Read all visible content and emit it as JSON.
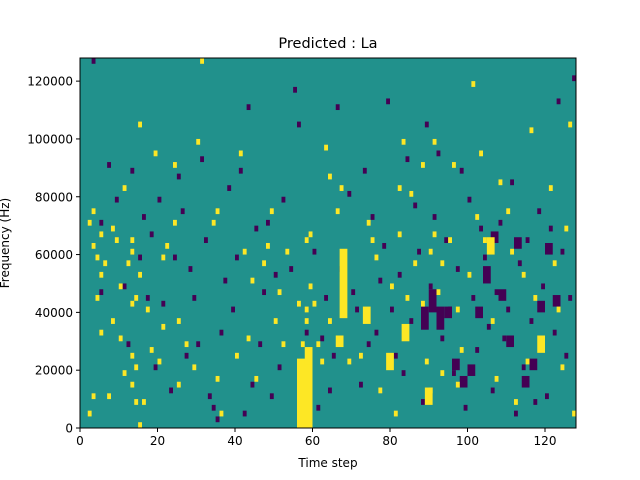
{
  "chart_data": {
    "type": "heatmap",
    "title": "Predicted : La",
    "xlabel": "Time step",
    "ylabel": "Frequency (Hz)",
    "xlim": [
      0,
      128
    ],
    "ylim": [
      0,
      128000
    ],
    "x_ticks": [
      0,
      20,
      40,
      60,
      80,
      100,
      120
    ],
    "y_ticks": [
      0,
      20000,
      40000,
      60000,
      80000,
      100000,
      120000
    ],
    "y_tick_labels": [
      "0",
      "20000",
      "40000",
      "60000",
      "80000",
      "100000",
      "120000"
    ],
    "colormap": "viridis",
    "value_levels": [
      -1,
      0,
      1
    ],
    "colors": {
      "low": "#440154",
      "mid": "#21918c",
      "high": "#fde725"
    },
    "background_value": 0,
    "grid": false,
    "high_cells": [
      [
        2,
        4000
      ],
      [
        2,
        70000
      ],
      [
        3,
        10000
      ],
      [
        3,
        62000
      ],
      [
        3,
        74000
      ],
      [
        4,
        58000
      ],
      [
        4,
        44000
      ],
      [
        5,
        52000
      ],
      [
        5,
        66000
      ],
      [
        5,
        32000
      ],
      [
        6,
        56000
      ],
      [
        7,
        10000
      ],
      [
        8,
        36000
      ],
      [
        8,
        68000
      ],
      [
        9,
        64000
      ],
      [
        10,
        48000
      ],
      [
        10,
        30000
      ],
      [
        11,
        82000
      ],
      [
        11,
        18000
      ],
      [
        12,
        56000
      ],
      [
        13,
        24000
      ],
      [
        13,
        14000
      ],
      [
        13,
        42000
      ],
      [
        13,
        60000
      ],
      [
        13,
        64000
      ],
      [
        14,
        8000
      ],
      [
        14,
        20000
      ],
      [
        14,
        44000
      ],
      [
        15,
        0
      ],
      [
        15,
        104000
      ],
      [
        15,
        52000
      ],
      [
        16,
        8000
      ],
      [
        17,
        40000
      ],
      [
        18,
        26000
      ],
      [
        19,
        94000
      ],
      [
        20,
        22000
      ],
      [
        21,
        34000
      ],
      [
        21,
        58000
      ],
      [
        22,
        62000
      ],
      [
        24,
        90000
      ],
      [
        24,
        70000
      ],
      [
        25,
        14000
      ],
      [
        25,
        36000
      ],
      [
        27,
        28000
      ],
      [
        29,
        20000
      ],
      [
        30,
        98000
      ],
      [
        31,
        126000
      ],
      [
        35,
        16000
      ],
      [
        34,
        70000
      ],
      [
        35,
        74000
      ],
      [
        36,
        4000
      ],
      [
        40,
        24000
      ],
      [
        41,
        94000
      ],
      [
        42,
        60000
      ],
      [
        43,
        30000
      ],
      [
        44,
        50000
      ],
      [
        45,
        16000
      ],
      [
        47,
        56000
      ],
      [
        48,
        62000
      ],
      [
        49,
        74000
      ],
      [
        50,
        36000
      ],
      [
        51,
        46000
      ],
      [
        52,
        28000
      ],
      [
        53,
        60000
      ],
      [
        56,
        42000
      ],
      [
        57,
        28000
      ],
      [
        58,
        36000
      ],
      [
        58,
        64000
      ],
      [
        59,
        66000
      ],
      [
        58,
        40000
      ],
      [
        59,
        48000
      ],
      [
        60,
        42000
      ],
      [
        61,
        28000
      ],
      [
        62,
        22000
      ],
      [
        63,
        96000
      ],
      [
        64,
        86000
      ],
      [
        64,
        36000
      ],
      [
        66,
        74000
      ],
      [
        67,
        82000
      ],
      [
        69,
        22000
      ],
      [
        72,
        24000
      ],
      [
        74,
        70000
      ],
      [
        75,
        64000
      ],
      [
        76,
        58000
      ],
      [
        77,
        12000
      ],
      [
        80,
        48000
      ],
      [
        81,
        4000
      ],
      [
        82,
        66000
      ],
      [
        82,
        82000
      ],
      [
        83,
        98000
      ],
      [
        84,
        44000
      ],
      [
        85,
        80000
      ],
      [
        86,
        56000
      ],
      [
        88,
        42000
      ],
      [
        88,
        90000
      ],
      [
        89,
        22000
      ],
      [
        90,
        60000
      ],
      [
        90,
        12000
      ],
      [
        91,
        66000
      ],
      [
        91,
        98000
      ],
      [
        92,
        46000
      ],
      [
        93,
        18000
      ],
      [
        93,
        56000
      ],
      [
        95,
        64000
      ],
      [
        96,
        90000
      ],
      [
        97,
        14000
      ],
      [
        97,
        40000
      ],
      [
        98,
        26000
      ],
      [
        100,
        52000
      ],
      [
        101,
        118000
      ],
      [
        102,
        72000
      ],
      [
        103,
        94000
      ],
      [
        104,
        64000
      ],
      [
        106,
        36000
      ],
      [
        107,
        16000
      ],
      [
        108,
        84000
      ],
      [
        110,
        74000
      ],
      [
        111,
        60000
      ],
      [
        112,
        8000
      ],
      [
        114,
        52000
      ],
      [
        115,
        22000
      ],
      [
        116,
        102000
      ],
      [
        117,
        44000
      ],
      [
        119,
        30000
      ],
      [
        121,
        82000
      ],
      [
        122,
        56000
      ],
      [
        123,
        40000
      ],
      [
        124,
        20000
      ],
      [
        125,
        68000
      ],
      [
        126,
        104000
      ],
      [
        127,
        4000
      ]
    ],
    "high_rects": [
      [
        56,
        0,
        4,
        24000
      ],
      [
        58,
        22000,
        2,
        6000
      ],
      [
        67,
        38000,
        2,
        24000
      ],
      [
        66,
        28000,
        2,
        4000
      ],
      [
        73,
        36000,
        2,
        6000
      ],
      [
        79,
        20000,
        2,
        6000
      ],
      [
        83,
        30000,
        2,
        6000
      ],
      [
        89,
        8000,
        2,
        6000
      ],
      [
        105,
        60000,
        2,
        6000
      ],
      [
        118,
        26000,
        2,
        6000
      ]
    ],
    "low_cells": [
      [
        3,
        126000
      ],
      [
        5,
        70000
      ],
      [
        5,
        46000
      ],
      [
        7,
        90000
      ],
      [
        9,
        78000
      ],
      [
        11,
        48000
      ],
      [
        12,
        28000
      ],
      [
        13,
        88000
      ],
      [
        15,
        58000
      ],
      [
        16,
        72000
      ],
      [
        17,
        44000
      ],
      [
        18,
        66000
      ],
      [
        19,
        20000
      ],
      [
        20,
        78000
      ],
      [
        21,
        42000
      ],
      [
        23,
        12000
      ],
      [
        24,
        58000
      ],
      [
        25,
        86000
      ],
      [
        26,
        74000
      ],
      [
        27,
        24000
      ],
      [
        28,
        54000
      ],
      [
        29,
        44000
      ],
      [
        30,
        28000
      ],
      [
        31,
        92000
      ],
      [
        32,
        64000
      ],
      [
        33,
        10000
      ],
      [
        34,
        6000
      ],
      [
        35,
        2000
      ],
      [
        36,
        32000
      ],
      [
        37,
        50000
      ],
      [
        38,
        82000
      ],
      [
        39,
        40000
      ],
      [
        40,
        58000
      ],
      [
        41,
        88000
      ],
      [
        42,
        4000
      ],
      [
        43,
        110000
      ],
      [
        44,
        14000
      ],
      [
        45,
        68000
      ],
      [
        46,
        28000
      ],
      [
        47,
        46000
      ],
      [
        48,
        70000
      ],
      [
        49,
        10000
      ],
      [
        50,
        52000
      ],
      [
        51,
        20000
      ],
      [
        52,
        78000
      ],
      [
        54,
        54000
      ],
      [
        55,
        116000
      ],
      [
        56,
        104000
      ],
      [
        58,
        32000
      ],
      [
        60,
        60000
      ],
      [
        61,
        6000
      ],
      [
        62,
        30000
      ],
      [
        63,
        44000
      ],
      [
        64,
        12000
      ],
      [
        65,
        24000
      ],
      [
        66,
        110000
      ],
      [
        67,
        54000
      ],
      [
        69,
        80000
      ],
      [
        70,
        46000
      ],
      [
        71,
        40000
      ],
      [
        72,
        14000
      ],
      [
        73,
        88000
      ],
      [
        74,
        28000
      ],
      [
        75,
        72000
      ],
      [
        76,
        32000
      ],
      [
        77,
        50000
      ],
      [
        78,
        62000
      ],
      [
        79,
        112000
      ],
      [
        80,
        40000
      ],
      [
        81,
        24000
      ],
      [
        82,
        52000
      ],
      [
        83,
        18000
      ],
      [
        84,
        92000
      ],
      [
        85,
        36000
      ],
      [
        86,
        76000
      ],
      [
        87,
        60000
      ],
      [
        88,
        8000
      ],
      [
        89,
        104000
      ],
      [
        90,
        48000
      ],
      [
        91,
        72000
      ],
      [
        92,
        94000
      ],
      [
        93,
        30000
      ],
      [
        94,
        64000
      ],
      [
        95,
        40000
      ],
      [
        96,
        18000
      ],
      [
        97,
        54000
      ],
      [
        98,
        88000
      ],
      [
        99,
        6000
      ],
      [
        100,
        78000
      ],
      [
        101,
        44000
      ],
      [
        102,
        26000
      ],
      [
        103,
        68000
      ],
      [
        104,
        58000
      ],
      [
        105,
        34000
      ],
      [
        106,
        12000
      ],
      [
        107,
        46000
      ],
      [
        108,
        70000
      ],
      [
        109,
        30000
      ],
      [
        110,
        40000
      ],
      [
        111,
        84000
      ],
      [
        112,
        4000
      ],
      [
        113,
        56000
      ],
      [
        114,
        20000
      ],
      [
        115,
        64000
      ],
      [
        116,
        36000
      ],
      [
        117,
        8000
      ],
      [
        118,
        74000
      ],
      [
        119,
        48000
      ],
      [
        120,
        10000
      ],
      [
        121,
        68000
      ],
      [
        122,
        32000
      ],
      [
        123,
        112000
      ],
      [
        124,
        60000
      ],
      [
        125,
        24000
      ],
      [
        126,
        44000
      ],
      [
        127,
        120000
      ]
    ],
    "low_rects": [
      [
        88,
        34000,
        2,
        8000
      ],
      [
        90,
        40000,
        2,
        8000
      ],
      [
        92,
        34000,
        2,
        8000
      ],
      [
        94,
        38000,
        2,
        4000
      ],
      [
        96,
        20000,
        2,
        4000
      ],
      [
        98,
        14000,
        2,
        4000
      ],
      [
        100,
        18000,
        2,
        4000
      ],
      [
        102,
        38000,
        2,
        4000
      ],
      [
        104,
        50000,
        2,
        6000
      ],
      [
        106,
        64000,
        2,
        4000
      ],
      [
        108,
        44000,
        2,
        4000
      ],
      [
        110,
        28000,
        2,
        4000
      ],
      [
        112,
        62000,
        2,
        4000
      ],
      [
        114,
        14000,
        2,
        4000
      ],
      [
        116,
        20000,
        2,
        4000
      ],
      [
        118,
        40000,
        2,
        4000
      ],
      [
        120,
        60000,
        2,
        4000
      ],
      [
        122,
        42000,
        2,
        4000
      ]
    ]
  }
}
